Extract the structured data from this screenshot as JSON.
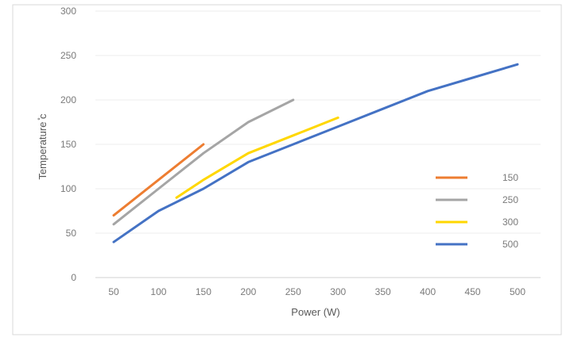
{
  "chart_data": {
    "type": "line",
    "title": "",
    "xlabel": "Power (W)",
    "ylabel": "Temperature ̊c",
    "xlim": [
      50,
      500
    ],
    "ylim": [
      0,
      300
    ],
    "x_ticks": [
      "50",
      "100",
      "150",
      "200",
      "250",
      "300",
      "350",
      "400",
      "450",
      "500"
    ],
    "y_ticks": [
      "0",
      "50",
      "100",
      "150",
      "200",
      "250",
      "300"
    ],
    "grid": "horizontal",
    "legend_position": "right",
    "series": [
      {
        "name": "150",
        "color": "#ed7d31",
        "points": [
          [
            50,
            70
          ],
          [
            100,
            110
          ],
          [
            150,
            150
          ]
        ]
      },
      {
        "name": "250",
        "color": "#a5a5a5",
        "points": [
          [
            50,
            60
          ],
          [
            100,
            100
          ],
          [
            150,
            140
          ],
          [
            200,
            175
          ],
          [
            250,
            200
          ]
        ]
      },
      {
        "name": "300",
        "color": "#ffd700",
        "points": [
          [
            120,
            90
          ],
          [
            150,
            110
          ],
          [
            200,
            140
          ],
          [
            250,
            160
          ],
          [
            300,
            180
          ]
        ]
      },
      {
        "name": "500",
        "color": "#4472c4",
        "points": [
          [
            50,
            40
          ],
          [
            100,
            75
          ],
          [
            150,
            100
          ],
          [
            200,
            130
          ],
          [
            250,
            150
          ],
          [
            300,
            170
          ],
          [
            350,
            190
          ],
          [
            400,
            210
          ],
          [
            450,
            225
          ],
          [
            500,
            240
          ]
        ]
      }
    ]
  }
}
